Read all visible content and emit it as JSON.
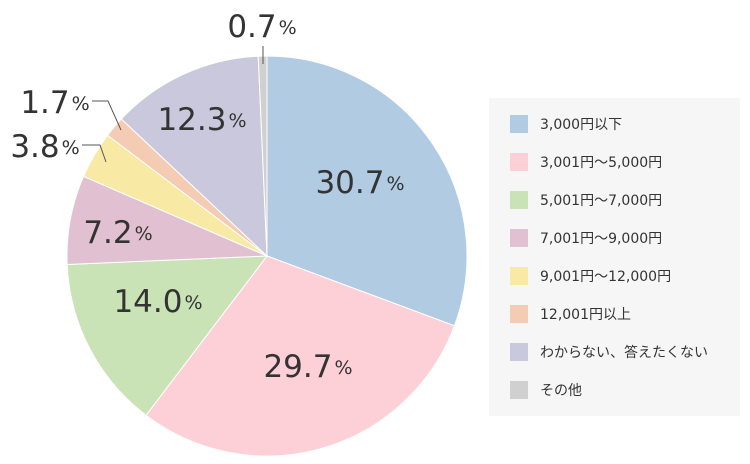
{
  "chart_data": {
    "type": "pie",
    "title": "",
    "start": "top, clockwise",
    "legend_position": "right",
    "slices": [
      {
        "label": "3,000円以下",
        "value": 30.7,
        "color": "#b0cbe2"
      },
      {
        "label": "3,001円〜5,000円",
        "value": 29.7,
        "color": "#fdd0d8"
      },
      {
        "label": "5,001円〜7,000円",
        "value": 14.0,
        "color": "#c9e2b6"
      },
      {
        "label": "7,001円〜9,000円",
        "value": 7.2,
        "color": "#e0c0d1"
      },
      {
        "label": "9,001円〜12,000円",
        "value": 3.8,
        "color": "#f8eaa4"
      },
      {
        "label": "12,001円以上",
        "value": 1.7,
        "color": "#f4cbb3"
      },
      {
        "label": "わからない、答えたくない",
        "value": 12.3,
        "color": "#cac8dc"
      },
      {
        "label": "その他",
        "value": 0.7,
        "color": "#d0d0d0"
      }
    ],
    "data_labels": [
      "30.7",
      "29.7",
      "14.0",
      "7.2",
      "3.8",
      "1.7",
      "12.3",
      "0.7"
    ],
    "unit": "%"
  }
}
